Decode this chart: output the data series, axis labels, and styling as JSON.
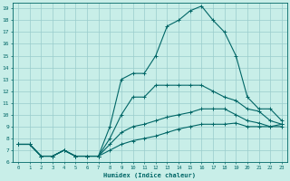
{
  "xlabel": "Humidex (Indice chaleur)",
  "bg_color": "#c8eee8",
  "line_color": "#006666",
  "grid_color": "#99cccc",
  "xlim": [
    -0.5,
    23.5
  ],
  "ylim": [
    6,
    19.5
  ],
  "xticks": [
    0,
    1,
    2,
    3,
    4,
    5,
    6,
    7,
    8,
    9,
    10,
    11,
    12,
    13,
    14,
    15,
    16,
    17,
    18,
    19,
    20,
    21,
    22,
    23
  ],
  "yticks": [
    6,
    7,
    8,
    9,
    10,
    11,
    12,
    13,
    14,
    15,
    16,
    17,
    18,
    19
  ],
  "curve1_x": [
    0,
    1,
    2,
    3,
    4,
    5,
    6,
    7,
    8,
    9,
    10,
    11,
    12,
    13,
    14,
    15,
    16,
    17,
    18,
    19,
    20,
    21,
    22,
    23
  ],
  "curve1_y": [
    7.5,
    7.5,
    6.5,
    6.5,
    7.0,
    6.5,
    6.5,
    6.5,
    9.0,
    13.0,
    13.5,
    13.5,
    15.0,
    17.5,
    18.0,
    18.8,
    19.2,
    18.0,
    17.0,
    15.0,
    11.5,
    10.5,
    10.5,
    9.5
  ],
  "curve2_x": [
    0,
    1,
    2,
    3,
    4,
    5,
    6,
    7,
    8,
    9,
    10,
    11,
    12,
    13,
    14,
    15,
    16,
    17,
    18,
    19,
    20,
    21,
    22,
    23
  ],
  "curve2_y": [
    7.5,
    7.5,
    6.5,
    6.5,
    7.0,
    6.5,
    6.5,
    6.5,
    8.0,
    10.0,
    11.5,
    11.5,
    12.5,
    12.5,
    12.5,
    12.5,
    12.5,
    12.0,
    11.5,
    11.2,
    10.5,
    10.3,
    9.5,
    9.2
  ],
  "curve3_x": [
    0,
    1,
    2,
    3,
    4,
    5,
    6,
    7,
    8,
    9,
    10,
    11,
    12,
    13,
    14,
    15,
    16,
    17,
    18,
    19,
    20,
    21,
    22,
    23
  ],
  "curve3_y": [
    7.5,
    7.5,
    6.5,
    6.5,
    7.0,
    6.5,
    6.5,
    6.5,
    7.5,
    8.5,
    9.0,
    9.2,
    9.5,
    9.8,
    10.0,
    10.2,
    10.5,
    10.5,
    10.5,
    10.0,
    9.5,
    9.3,
    9.0,
    9.0
  ],
  "curve4_x": [
    0,
    1,
    2,
    3,
    4,
    5,
    6,
    7,
    8,
    9,
    10,
    11,
    12,
    13,
    14,
    15,
    16,
    17,
    18,
    19,
    20,
    21,
    22,
    23
  ],
  "curve4_y": [
    7.5,
    7.5,
    6.5,
    6.5,
    7.0,
    6.5,
    6.5,
    6.5,
    7.0,
    7.5,
    7.8,
    8.0,
    8.2,
    8.5,
    8.8,
    9.0,
    9.2,
    9.2,
    9.2,
    9.3,
    9.0,
    9.0,
    9.0,
    9.2
  ]
}
